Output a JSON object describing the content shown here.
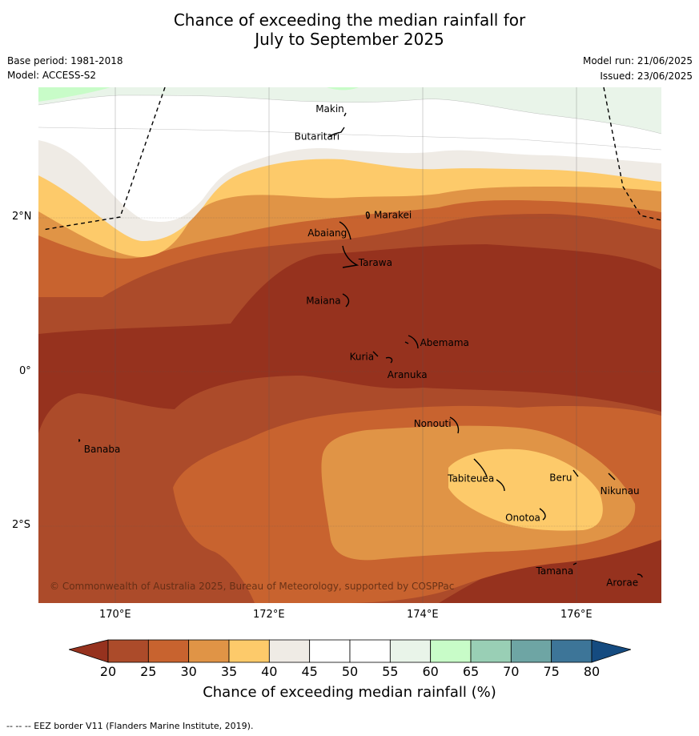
{
  "title_line1": "Chance of exceeding the median rainfall for",
  "title_line2": "July to September 2025",
  "base_period": "Base period: 1981-2018",
  "model": "Model: ACCESS-S2",
  "model_run": "Model run: 21/06/2025",
  "issued": "Issued: 23/06/2025",
  "map": {
    "longitude_range": [
      169.0,
      177.1
    ],
    "latitude_range": [
      -3.0,
      3.7
    ],
    "lon_ticks": [
      "170°E",
      "172°E",
      "174°E",
      "176°E"
    ],
    "lat_ticks": [
      "2°N",
      "0°",
      "2°S"
    ],
    "places": [
      {
        "name": "Makin",
        "lon": 173.0,
        "lat": 3.4
      },
      {
        "name": "Butaritari",
        "lon": 172.9,
        "lat": 3.1
      },
      {
        "name": "Marakei",
        "lon": 173.3,
        "lat": 2.0
      },
      {
        "name": "Abaiang",
        "lon": 173.0,
        "lat": 1.85
      },
      {
        "name": "Tarawa",
        "lon": 173.1,
        "lat": 1.4
      },
      {
        "name": "Maiana",
        "lon": 173.0,
        "lat": 0.95
      },
      {
        "name": "Abemama",
        "lon": 173.9,
        "lat": 0.4
      },
      {
        "name": "Kuria",
        "lon": 173.4,
        "lat": 0.2
      },
      {
        "name": "Aranuka",
        "lon": 173.6,
        "lat": 0.15
      },
      {
        "name": "Banaba",
        "lon": 169.55,
        "lat": -0.9
      },
      {
        "name": "Nonouti",
        "lon": 174.4,
        "lat": -0.65
      },
      {
        "name": "Tabiteuea",
        "lon": 174.8,
        "lat": -1.3
      },
      {
        "name": "Beru",
        "lon": 176.0,
        "lat": -1.35
      },
      {
        "name": "Nikunau",
        "lon": 176.45,
        "lat": -1.4
      },
      {
        "name": "Onotoa",
        "lon": 175.55,
        "lat": -1.85
      },
      {
        "name": "Tamana",
        "lon": 175.95,
        "lat": -2.5
      },
      {
        "name": "Arorae",
        "lon": 176.8,
        "lat": -2.65
      }
    ],
    "copyright": "© Commonwealth of Australia 2025, Bureau of Meteorology, supported by COSPPac"
  },
  "colorbar": {
    "labels": [
      "20",
      "25",
      "30",
      "35",
      "40",
      "45",
      "50",
      "55",
      "60",
      "65",
      "70",
      "75",
      "80"
    ],
    "colors": [
      "#ac4b2a",
      "#c8632f",
      "#e09446",
      "#fdca6a",
      "#efebe5",
      "#ffffff",
      "#ffffff",
      "#e9f4e9",
      "#c8fcc8",
      "#99cfb5",
      "#6ea5a4",
      "#3d7598"
    ],
    "under_color": "#96321e",
    "over_color": "#154b80",
    "title": "Chance of exceeding median rainfall (%)"
  },
  "footer": "--  --  -- EEZ border V11 (Flanders Marine Institute, 2019)."
}
